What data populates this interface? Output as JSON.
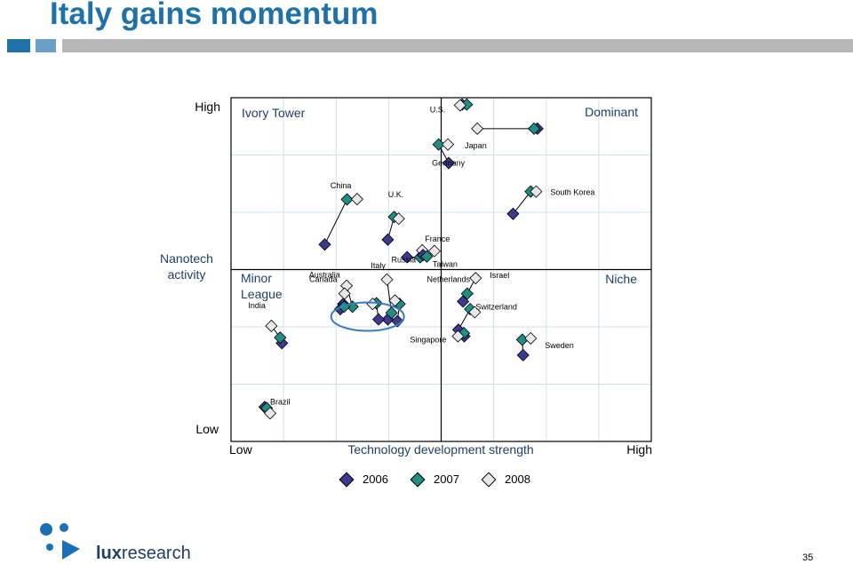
{
  "slide": {
    "title": "Italy gains momentum",
    "page_number": "35"
  },
  "logo": {
    "prefix": "lux",
    "suffix": "research"
  },
  "colors": {
    "y2006": "#3b3a8f",
    "y2007": "#1f8f85",
    "y2008": "#e8e8e8",
    "title": "#1f72a8",
    "highlight": "#3a7bbf"
  },
  "chart_data": {
    "type": "scatter",
    "xlabel": "Technology development strength",
    "ylabel": "Nanotech activity",
    "x_ticks": [
      "Low",
      "High"
    ],
    "y_ticks": [
      "Low",
      "High"
    ],
    "xlim": [
      0,
      100
    ],
    "ylim": [
      0,
      100
    ],
    "quadrants": {
      "top_left": "Ivory Tower",
      "top_right": "Dominant",
      "bottom_left": "Minor League",
      "bottom_right": "Niche"
    },
    "series": [
      {
        "name": "2006",
        "marker": "diamond",
        "color": "#3b3a8f"
      },
      {
        "name": "2007",
        "marker": "diamond",
        "color": "#1f8f85"
      },
      {
        "name": "2008",
        "marker": "diamond",
        "color": "#e8e8e8"
      }
    ],
    "countries": [
      {
        "name": "U.S.",
        "points": [
          [
            55.0,
            98.0
          ],
          [
            56.1,
            98.0
          ],
          [
            54.5,
            97.8
          ]
        ]
      },
      {
        "name": "Japan",
        "points": [
          [
            72.9,
            91.0
          ],
          [
            72.1,
            91.0
          ],
          [
            58.6,
            91.0
          ]
        ]
      },
      {
        "name": "Germany",
        "points": [
          [
            51.8,
            81.0
          ],
          [
            49.4,
            86.4
          ],
          [
            51.6,
            86.4
          ]
        ]
      },
      {
        "name": "South Korea",
        "points": [
          [
            67.1,
            66.2
          ],
          [
            71.3,
            72.7
          ],
          [
            72.6,
            72.7
          ]
        ]
      },
      {
        "name": "China",
        "points": [
          [
            22.3,
            57.3
          ],
          [
            27.6,
            70.4
          ],
          [
            30.0,
            70.5
          ]
        ]
      },
      {
        "name": "U.K.",
        "points": [
          [
            37.3,
            58.7
          ],
          [
            38.8,
            65.3
          ],
          [
            39.9,
            64.8
          ]
        ]
      },
      {
        "name": "France",
        "points": [
          [
            41.9,
            53.6
          ],
          [
            45.0,
            53.6
          ],
          [
            45.5,
            55.6
          ]
        ]
      },
      {
        "name": "Taiwan",
        "points": [
          [
            45.7,
            54.2
          ],
          [
            46.6,
            53.8
          ],
          [
            48.4,
            55.4
          ]
        ]
      },
      {
        "name": "Russia",
        "points": [
          [
            37.3,
            35.5
          ],
          [
            38.2,
            37.4
          ],
          [
            37.1,
            47.1
          ]
        ]
      },
      {
        "name": "Netherlands",
        "points": [
          [
            39.6,
            35.0
          ],
          [
            40.1,
            40.0
          ],
          [
            39.0,
            41.0
          ]
        ]
      },
      {
        "name": "Israel",
        "points": [
          [
            55.2,
            40.7
          ],
          [
            56.2,
            43.0
          ],
          [
            58.2,
            47.5
          ]
        ]
      },
      {
        "name": "Canada",
        "points": [
          [
            26.7,
            40.0
          ],
          [
            28.9,
            39.2
          ],
          [
            27.5,
            45.3
          ]
        ]
      },
      {
        "name": "Australia",
        "points": [
          [
            26.0,
            38.5
          ],
          [
            26.9,
            39.2
          ],
          [
            27.0,
            43.0
          ]
        ]
      },
      {
        "name": "Switzerland",
        "points": [
          [
            54.1,
            32.5
          ],
          [
            56.9,
            38.5
          ],
          [
            58.0,
            37.6
          ]
        ]
      },
      {
        "name": "Singapore",
        "points": [
          [
            55.5,
            30.6
          ],
          [
            55.4,
            31.5
          ],
          [
            54.0,
            30.6
          ]
        ]
      },
      {
        "name": "Italy",
        "points": [
          [
            35.1,
            35.5
          ],
          [
            34.6,
            40.2
          ],
          [
            33.7,
            40.0
          ]
        ]
      },
      {
        "name": "India",
        "points": [
          [
            12.1,
            28.6
          ],
          [
            11.7,
            30.2
          ],
          [
            9.6,
            33.6
          ]
        ]
      },
      {
        "name": "Sweden",
        "points": [
          [
            69.5,
            25.1
          ],
          [
            69.3,
            29.6
          ],
          [
            71.3,
            30.0
          ]
        ]
      },
      {
        "name": "Brazil",
        "points": [
          [
            8.0,
            10.0
          ],
          [
            8.5,
            9.7
          ],
          [
            9.3,
            8.2
          ]
        ]
      }
    ],
    "highlight": "Italy",
    "legend_position": "bottom"
  }
}
